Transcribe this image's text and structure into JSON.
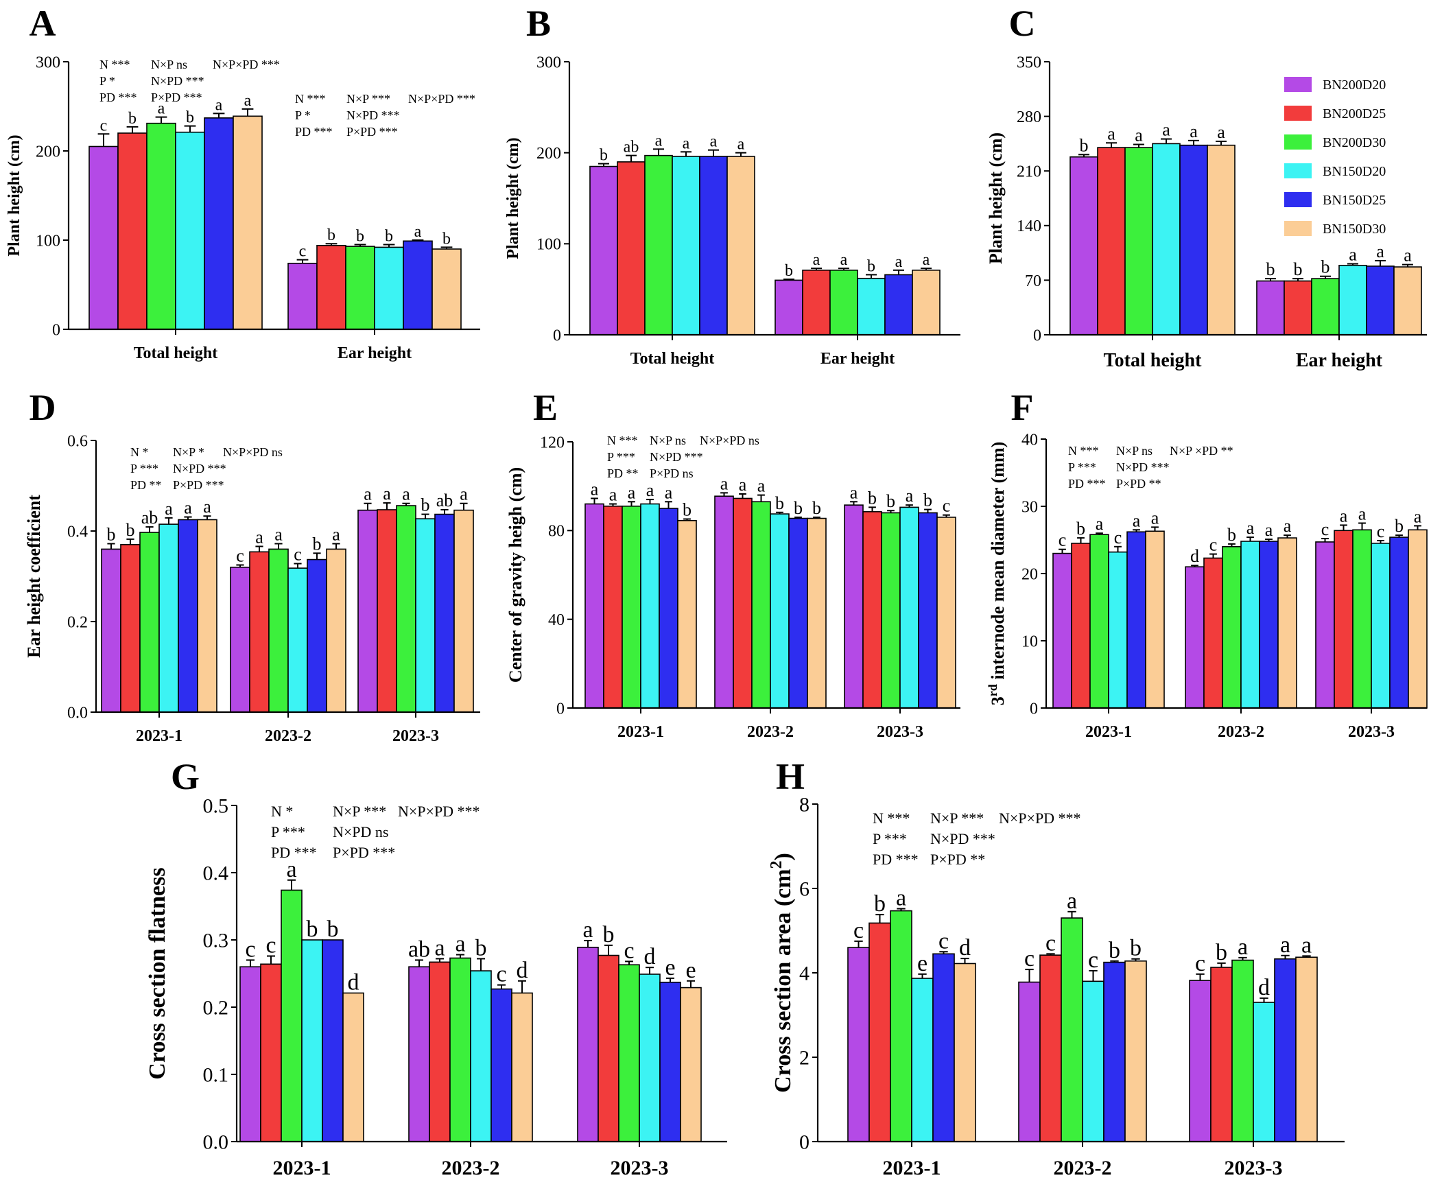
{
  "colors": [
    "#b44ae6",
    "#f23c3c",
    "#3cf03c",
    "#3cf3f3",
    "#2e2ef0",
    "#fbcd96"
  ],
  "legend": {
    "labels": [
      "BN200D20",
      "BN200D25",
      "BN200D30",
      "BN150D20",
      "BN150D25",
      "BN150D30"
    ]
  },
  "chart_data": [
    {
      "id": "A",
      "type": "bar",
      "ylabel": "Plant height (cm)",
      "ylim": [
        0,
        300
      ],
      "yticks": [
        "0",
        "100",
        "200",
        "300"
      ],
      "categories": [
        "Total height",
        "Ear height"
      ],
      "values": [
        [
          205,
          220,
          231,
          221,
          237,
          239
        ],
        [
          74,
          94,
          93,
          92,
          99,
          90
        ]
      ],
      "errors": [
        [
          14,
          7,
          7,
          7,
          5,
          8
        ],
        [
          4,
          2,
          2,
          3,
          1,
          2
        ]
      ],
      "letters": [
        [
          "c",
          "b",
          "a",
          "b",
          "a",
          "a"
        ],
        [
          "c",
          "b",
          "b",
          "b",
          "a",
          "b"
        ]
      ],
      "stats": [
        [
          "N ***",
          "N×P ns",
          "N×P×PD ***"
        ],
        [
          "P *",
          "N×PD ***"
        ],
        [
          "PD ***",
          "P×PD ***"
        ],
        [
          "N ***",
          "N×P ***",
          "N×P×PD ***"
        ],
        [
          "P *",
          "N×PD ***"
        ],
        [
          "PD ***",
          "P×PD ***"
        ]
      ]
    },
    {
      "id": "B",
      "type": "bar",
      "ylabel": "Plant height (cm)",
      "ylim": [
        0,
        300
      ],
      "yticks": [
        "0",
        "100",
        "200",
        "300"
      ],
      "categories": [
        "Total  height",
        "Ear height"
      ],
      "values": [
        [
          185,
          190,
          197,
          196,
          196,
          196
        ],
        [
          60,
          71,
          71,
          62,
          66,
          71
        ]
      ],
      "errors": [
        [
          3,
          7,
          7,
          5,
          7,
          4
        ],
        [
          1,
          2,
          2,
          4,
          5,
          2
        ]
      ],
      "letters": [
        [
          "b",
          "ab",
          "a",
          "a",
          "a",
          "a"
        ],
        [
          "b",
          "a",
          "a",
          "b",
          "a",
          "a"
        ]
      ],
      "stats": []
    },
    {
      "id": "C",
      "type": "bar",
      "ylabel": "Plant height (cm)",
      "ylim": [
        0,
        350
      ],
      "yticks": [
        "0",
        "70",
        "140",
        "210",
        "280",
        "350"
      ],
      "categories": [
        "Total  height",
        "Ear  height"
      ],
      "values": [
        [
          228,
          240,
          240,
          245,
          243,
          243
        ],
        [
          69,
          69,
          72,
          89,
          88,
          87
        ]
      ],
      "errors": [
        [
          3,
          6,
          4,
          6,
          6,
          5
        ],
        [
          3,
          3,
          3,
          2,
          7,
          3
        ]
      ],
      "letters": [
        [
          "b",
          "a",
          "a",
          "a",
          "a",
          "a"
        ],
        [
          "b",
          "b",
          "b",
          "a",
          "a",
          "a"
        ]
      ],
      "stats": []
    },
    {
      "id": "D",
      "type": "bar",
      "ylabel": "Ear height coefficient",
      "ylim": [
        0,
        0.6
      ],
      "yticks": [
        "0.0",
        "0.2",
        "0.4",
        "0.6"
      ],
      "categories": [
        "2023-1",
        "2023-2",
        "2023-3"
      ],
      "values": [
        [
          0.36,
          0.37,
          0.397,
          0.415,
          0.425,
          0.425
        ],
        [
          0.32,
          0.354,
          0.36,
          0.318,
          0.337,
          0.36
        ],
        [
          0.446,
          0.447,
          0.456,
          0.427,
          0.437,
          0.446
        ]
      ],
      "errors": [
        [
          0.012,
          0.012,
          0.012,
          0.014,
          0.006,
          0.008
        ],
        [
          0.005,
          0.012,
          0.012,
          0.01,
          0.014,
          0.012
        ],
        [
          0.015,
          0.015,
          0.005,
          0.01,
          0.01,
          0.015
        ]
      ],
      "letters": [
        [
          "b",
          "b",
          "ab",
          "a",
          "a",
          "a"
        ],
        [
          "c",
          "a",
          "a",
          "c",
          "b",
          "a"
        ],
        [
          "a",
          "a",
          "a",
          "b",
          "ab",
          "a"
        ]
      ],
      "stats": [
        [
          "N *",
          "N×P *",
          "N×P×PD ns"
        ],
        [
          "P ***",
          "N×PD ***"
        ],
        [
          "PD **",
          "P×PD ***"
        ]
      ]
    },
    {
      "id": "E",
      "type": "bar",
      "ylabel": "Center of gravity heigh (cm)",
      "ylim": [
        0,
        120
      ],
      "yticks": [
        "0",
        "40",
        "80",
        "120"
      ],
      "categories": [
        "2023-1",
        "2023-2",
        "2023-3"
      ],
      "values": [
        [
          92,
          91,
          91,
          92,
          90,
          84.5
        ],
        [
          95.5,
          94.5,
          93,
          87.5,
          85.5,
          85.5
        ],
        [
          91.5,
          88.5,
          88,
          90.5,
          88,
          86
        ]
      ],
      "errors": [
        [
          2.5,
          1,
          2,
          2,
          3,
          0.7
        ],
        [
          1.5,
          2,
          3,
          0.7,
          0.5,
          0.5
        ],
        [
          1.5,
          2,
          1,
          1,
          1.5,
          1
        ]
      ],
      "letters": [
        [
          "a",
          "a",
          "a",
          "a",
          "a",
          "b"
        ],
        [
          "a",
          "a",
          "a",
          "b",
          "b",
          "b"
        ],
        [
          "a",
          "b",
          "b",
          "a",
          "b",
          "c"
        ]
      ],
      "stats": [
        [
          "N ***",
          "N×P ns",
          "N×P×PD ns"
        ],
        [
          "P ***",
          "N×PD ***"
        ],
        [
          "PD **",
          "P×PD ns"
        ]
      ]
    },
    {
      "id": "F",
      "type": "bar",
      "ylabel": "3rd internode mean diameter (mm)",
      "ylim": [
        0,
        40
      ],
      "yticks": [
        "0",
        "10",
        "20",
        "30",
        "40"
      ],
      "categories": [
        "2023-1",
        "2023-2",
        "2023-3"
      ],
      "values": [
        [
          23,
          24.5,
          25.8,
          23.2,
          26.2,
          26.3
        ],
        [
          21,
          22.3,
          24,
          24.8,
          24.8,
          25.3
        ],
        [
          24.7,
          26.4,
          26.5,
          24.5,
          25.4,
          26.5
        ]
      ],
      "errors": [
        [
          0.6,
          0.8,
          0.2,
          0.8,
          0.3,
          0.6
        ],
        [
          0.2,
          0.6,
          0.4,
          0.6,
          0.3,
          0.4
        ],
        [
          0.5,
          0.8,
          1,
          0.4,
          0.3,
          0.6
        ]
      ],
      "letters": [
        [
          "c",
          "b",
          "a",
          "c",
          "a",
          "a"
        ],
        [
          "d",
          "c",
          "b",
          "a",
          "a",
          "a"
        ],
        [
          "c",
          "a",
          "a",
          "c",
          "b",
          "a"
        ]
      ],
      "stats": [
        [
          "N ***",
          "N×P ns",
          "N×P ×PD **"
        ],
        [
          "P ***",
          "N×PD ***"
        ],
        [
          "PD ***",
          "P×PD **"
        ]
      ]
    },
    {
      "id": "G",
      "type": "bar",
      "ylabel": "Cross section flatness",
      "ylim": [
        0,
        0.5
      ],
      "yticks": [
        "0.0",
        "0.1",
        "0.2",
        "0.3",
        "0.4",
        "0.5"
      ],
      "categories": [
        "2023-1",
        "2023-2",
        "2023-3"
      ],
      "values": [
        [
          0.26,
          0.264,
          0.374,
          0.3,
          0.3,
          0.221
        ],
        [
          0.26,
          0.267,
          0.273,
          0.254,
          0.227,
          0.221
        ],
        [
          0.289,
          0.277,
          0.263,
          0.249,
          0.237,
          0.229
        ]
      ],
      "errors": [
        [
          0.01,
          0.012,
          0.015,
          0.0,
          0.0,
          0.0
        ],
        [
          0.01,
          0.005,
          0.005,
          0.018,
          0.006,
          0.018
        ],
        [
          0.01,
          0.015,
          0.005,
          0.01,
          0.006,
          0.01
        ]
      ],
      "letters": [
        [
          "c",
          "c",
          "a",
          "b",
          "b",
          "d"
        ],
        [
          "ab",
          "a",
          "a",
          "b",
          "c",
          "d"
        ],
        [
          "a",
          "b",
          "c",
          "d",
          "e",
          "e"
        ]
      ],
      "stats": [
        [
          "N *",
          "N×P ***",
          "N×P×PD ***"
        ],
        [
          "P ***",
          "N×PD ns"
        ],
        [
          "PD ***",
          "P×PD ***"
        ]
      ]
    },
    {
      "id": "H",
      "type": "bar",
      "ylabel": "Cross section area (cm2)",
      "ylim": [
        0,
        8
      ],
      "yticks": [
        "0",
        "2",
        "4",
        "6",
        "8"
      ],
      "categories": [
        "2023-1",
        "2023-2",
        "2023-3"
      ],
      "values": [
        [
          4.6,
          5.18,
          5.47,
          3.87,
          4.45,
          4.22
        ],
        [
          3.78,
          4.42,
          5.3,
          3.8,
          4.25,
          4.28
        ],
        [
          3.82,
          4.13,
          4.3,
          3.3,
          4.33,
          4.37
        ]
      ],
      "errors": [
        [
          0.15,
          0.2,
          0.05,
          0.1,
          0.05,
          0.12
        ],
        [
          0.3,
          0.03,
          0.15,
          0.25,
          0.03,
          0.05
        ],
        [
          0.15,
          0.1,
          0.06,
          0.1,
          0.08,
          0.03
        ]
      ],
      "letters": [
        [
          "c",
          "b",
          "a",
          "e",
          "c",
          "d"
        ],
        [
          "c",
          "c",
          "a",
          "c",
          "b",
          "b"
        ],
        [
          "c",
          "b",
          "a",
          "d",
          "a",
          "a"
        ]
      ],
      "stats": [
        [
          "N ***",
          "N×P ***",
          "N×P×PD ***"
        ],
        [
          "P ***",
          "N×PD ***"
        ],
        [
          "PD ***",
          "P×PD **"
        ]
      ]
    }
  ]
}
